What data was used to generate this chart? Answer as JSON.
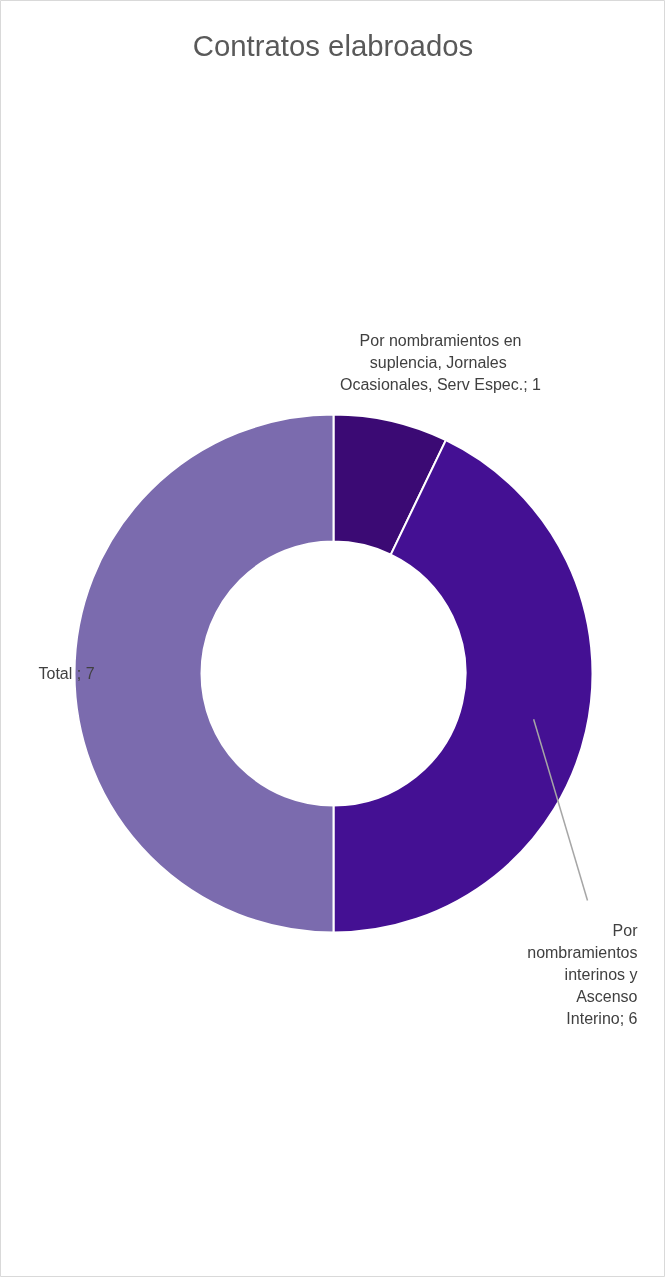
{
  "chart_data": {
    "type": "donut",
    "title": "Contratos elabroados",
    "categories": [
      "Por nombramientos en suplencia,  Jornales Ocasionales, Serv Espec.",
      "Por nombramientos interinos y Ascenso Interino",
      "Total "
    ],
    "values": [
      1,
      6,
      7
    ],
    "value_labels": [
      "; 1",
      "; 6",
      "; 7"
    ],
    "colors": [
      "#3b0a74",
      "#441093",
      "#7b6bae"
    ],
    "legend": false
  }
}
